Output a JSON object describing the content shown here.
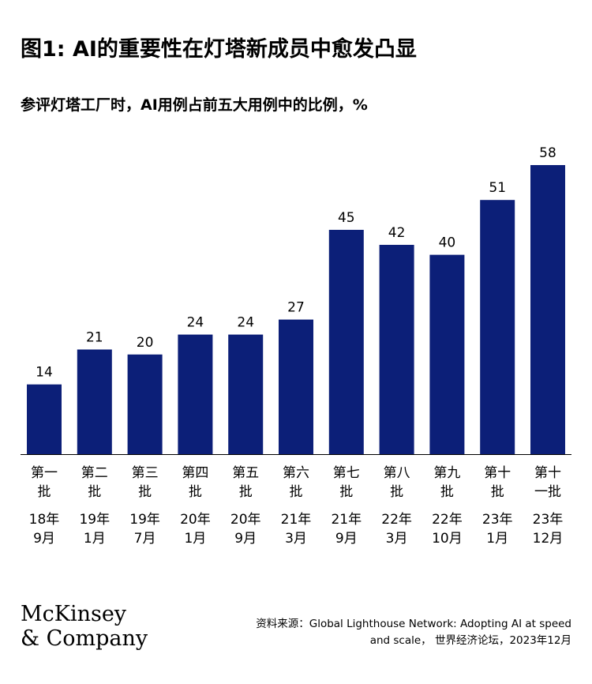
{
  "title": "图1: AI的重要性在灯塔新成员中愈发凸显",
  "subtitle": "参评灯塔工厂时，AI用例占前五大用例中的比例，%",
  "chart_data": {
    "type": "bar",
    "title": "图1: AI的重要性在灯塔新成员中愈发凸显",
    "subtitle": "参评灯塔工厂时，AI用例占前五大用例中的比例，%",
    "categories": [
      {
        "batch": [
          "第一",
          "批"
        ],
        "date": [
          "18年",
          "9月"
        ]
      },
      {
        "batch": [
          "第二",
          "批"
        ],
        "date": [
          "19年",
          "1月"
        ]
      },
      {
        "batch": [
          "第三",
          "批"
        ],
        "date": [
          "19年",
          "7月"
        ]
      },
      {
        "batch": [
          "第四",
          "批"
        ],
        "date": [
          "20年",
          "1月"
        ]
      },
      {
        "batch": [
          "第五",
          "批"
        ],
        "date": [
          "20年",
          "9月"
        ]
      },
      {
        "batch": [
          "第六",
          "批"
        ],
        "date": [
          "21年",
          "3月"
        ]
      },
      {
        "batch": [
          "第七",
          "批"
        ],
        "date": [
          "21年",
          "9月"
        ]
      },
      {
        "batch": [
          "第八",
          "批"
        ],
        "date": [
          "22年",
          "3月"
        ]
      },
      {
        "batch": [
          "第九",
          "批"
        ],
        "date": [
          "22年",
          "10月"
        ]
      },
      {
        "batch": [
          "第十",
          "批"
        ],
        "date": [
          "23年",
          "1月"
        ]
      },
      {
        "batch": [
          "第十",
          "一批"
        ],
        "date": [
          "23年",
          "12月"
        ]
      }
    ],
    "values": [
      14,
      21,
      20,
      24,
      24,
      27,
      45,
      42,
      40,
      51,
      58
    ],
    "ylim": [
      0,
      58
    ],
    "grid": false,
    "legend": "none",
    "bar_color": "#0c1f78"
  },
  "logo": {
    "line1": "McKinsey",
    "line2": "& Company"
  },
  "source": {
    "line1": "资料来源：Global Lighthouse Network: Adopting AI at speed",
    "line2": "and scale， 世界经济论坛，2023年12月"
  }
}
